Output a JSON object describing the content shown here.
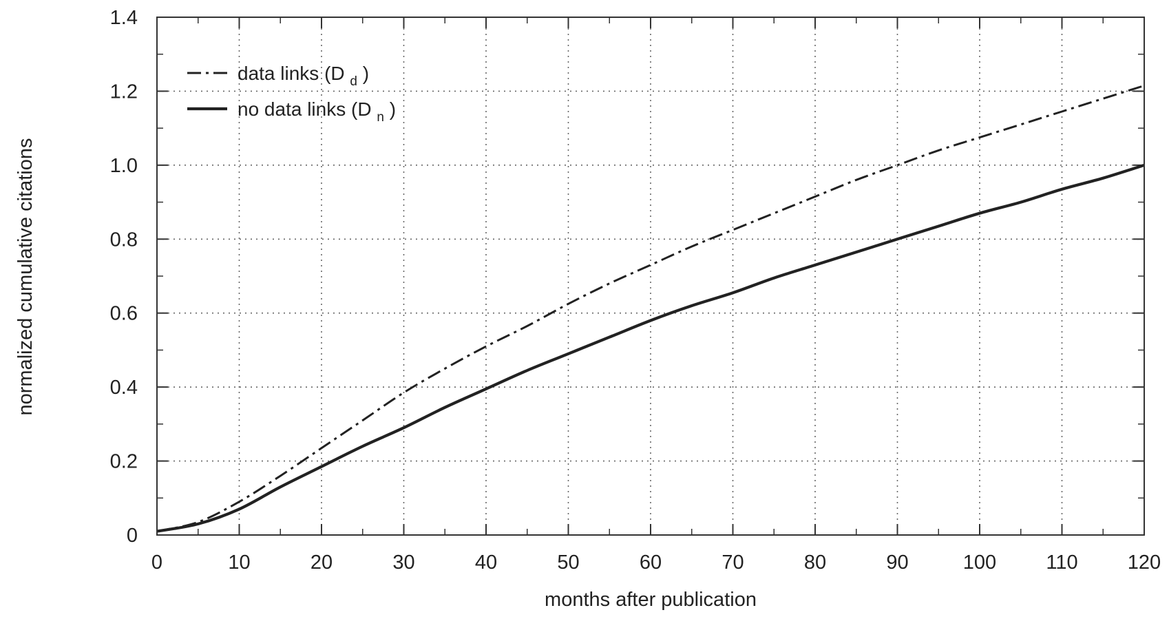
{
  "chart_data": {
    "type": "line",
    "xlabel": "months after publication",
    "ylabel": "normalized cumulative citations",
    "xlim": [
      0,
      120
    ],
    "ylim": [
      0,
      1.4
    ],
    "x_ticks": [
      0,
      10,
      20,
      30,
      40,
      50,
      60,
      70,
      80,
      90,
      100,
      110,
      120
    ],
    "y_ticks": [
      0,
      0.2,
      0.4,
      0.6,
      0.8,
      1.0,
      1.2,
      1.4
    ],
    "x_tick_labels": [
      "0",
      "10",
      "20",
      "30",
      "40",
      "50",
      "60",
      "70",
      "80",
      "90",
      "100",
      "110",
      "120"
    ],
    "y_tick_labels": [
      "0",
      "0.2",
      "0.4",
      "0.6",
      "0.8",
      "1.0",
      "1.2",
      "1.4"
    ],
    "x_minor_step": 5,
    "y_minor_step": 0.1,
    "grid": "dotted",
    "legend_position": "top-left",
    "series": [
      {
        "label_text": "data links (D",
        "label_sub": "d",
        "label_close": ")",
        "style": "dashdot",
        "color": "#222222",
        "x": [
          0,
          5,
          10,
          15,
          20,
          25,
          30,
          35,
          40,
          45,
          50,
          55,
          60,
          65,
          70,
          75,
          80,
          85,
          90,
          95,
          100,
          105,
          110,
          115,
          120
        ],
        "y": [
          0.01,
          0.035,
          0.09,
          0.16,
          0.235,
          0.31,
          0.385,
          0.45,
          0.51,
          0.565,
          0.625,
          0.68,
          0.73,
          0.78,
          0.825,
          0.87,
          0.915,
          0.96,
          1.0,
          1.04,
          1.075,
          1.11,
          1.145,
          1.18,
          1.215
        ]
      },
      {
        "label_text": "no data links (D",
        "label_sub": "n",
        "label_close": ")",
        "style": "solid",
        "color": "#222222",
        "x": [
          0,
          5,
          10,
          15,
          20,
          25,
          30,
          35,
          40,
          45,
          50,
          55,
          60,
          65,
          70,
          75,
          80,
          85,
          90,
          95,
          100,
          105,
          110,
          115,
          120
        ],
        "y": [
          0.01,
          0.03,
          0.07,
          0.13,
          0.185,
          0.24,
          0.29,
          0.345,
          0.395,
          0.445,
          0.49,
          0.535,
          0.58,
          0.62,
          0.655,
          0.695,
          0.73,
          0.765,
          0.8,
          0.835,
          0.87,
          0.9,
          0.935,
          0.965,
          1.0
        ]
      }
    ]
  }
}
